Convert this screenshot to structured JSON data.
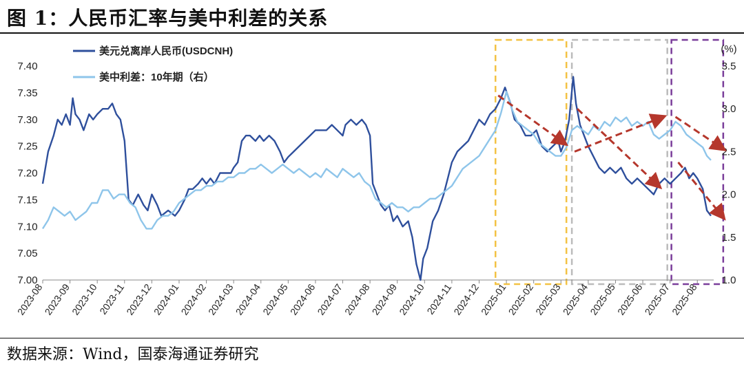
{
  "figure": {
    "title": "图 1：人民币汇率与美中利差的关系",
    "source": "数据来源：Wind，国泰海通证券研究"
  },
  "chart_data": {
    "type": "line",
    "left_axis": {
      "min": 7.0,
      "max": 7.4,
      "ticks": [
        "7.00",
        "7.05",
        "7.10",
        "7.15",
        "7.20",
        "7.25",
        "7.30",
        "7.35",
        "7.40"
      ]
    },
    "right_axis": {
      "unit": "(%)",
      "min": 1.0,
      "max": 3.5,
      "ticks": [
        "1.0",
        "1.5",
        "2.0",
        "2.5",
        "3.0",
        "3.5"
      ]
    },
    "x_ticks": [
      "2023-08",
      "2023-09",
      "2023-10",
      "2023-11",
      "2023-12",
      "2024-01",
      "2024-02",
      "2024-03",
      "2024-04",
      "2024-05",
      "2024-06",
      "2024-07",
      "2024-08",
      "2024-09",
      "2024-10",
      "2024-11",
      "2024-12",
      "2025-01",
      "2025-02",
      "2025-03",
      "2025-04",
      "2025-05",
      "2025-06",
      "2025-07",
      "2025-08"
    ],
    "series": [
      {
        "name": "美元兑离岸人民币(USDCNH)",
        "axis": "left",
        "color": "#2e4f9c",
        "points": [
          [
            0,
            7.18
          ],
          [
            0.2,
            7.24
          ],
          [
            0.4,
            7.27
          ],
          [
            0.55,
            7.3
          ],
          [
            0.7,
            7.29
          ],
          [
            0.85,
            7.31
          ],
          [
            1.0,
            7.29
          ],
          [
            1.1,
            7.34
          ],
          [
            1.2,
            7.31
          ],
          [
            1.35,
            7.3
          ],
          [
            1.5,
            7.28
          ],
          [
            1.7,
            7.31
          ],
          [
            1.85,
            7.3
          ],
          [
            2.0,
            7.31
          ],
          [
            2.2,
            7.32
          ],
          [
            2.4,
            7.32
          ],
          [
            2.55,
            7.33
          ],
          [
            2.7,
            7.31
          ],
          [
            2.85,
            7.3
          ],
          [
            3.0,
            7.26
          ],
          [
            3.15,
            7.15
          ],
          [
            3.3,
            7.14
          ],
          [
            3.5,
            7.16
          ],
          [
            3.7,
            7.14
          ],
          [
            3.85,
            7.13
          ],
          [
            4.0,
            7.16
          ],
          [
            4.2,
            7.14
          ],
          [
            4.35,
            7.12
          ],
          [
            4.6,
            7.13
          ],
          [
            4.85,
            7.12
          ],
          [
            5.0,
            7.13
          ],
          [
            5.2,
            7.15
          ],
          [
            5.35,
            7.17
          ],
          [
            5.5,
            7.17
          ],
          [
            5.7,
            7.18
          ],
          [
            5.85,
            7.19
          ],
          [
            6.0,
            7.18
          ],
          [
            6.15,
            7.19
          ],
          [
            6.3,
            7.18
          ],
          [
            6.5,
            7.2
          ],
          [
            6.7,
            7.2
          ],
          [
            6.9,
            7.2
          ],
          [
            7.0,
            7.21
          ],
          [
            7.15,
            7.22
          ],
          [
            7.3,
            7.26
          ],
          [
            7.45,
            7.27
          ],
          [
            7.6,
            7.27
          ],
          [
            7.8,
            7.26
          ],
          [
            7.95,
            7.27
          ],
          [
            8.1,
            7.26
          ],
          [
            8.3,
            7.27
          ],
          [
            8.5,
            7.26
          ],
          [
            8.7,
            7.24
          ],
          [
            8.85,
            7.22
          ],
          [
            9.0,
            7.23
          ],
          [
            9.2,
            7.24
          ],
          [
            9.4,
            7.25
          ],
          [
            9.6,
            7.26
          ],
          [
            9.8,
            7.27
          ],
          [
            10.0,
            7.28
          ],
          [
            10.2,
            7.28
          ],
          [
            10.4,
            7.28
          ],
          [
            10.6,
            7.29
          ],
          [
            10.8,
            7.28
          ],
          [
            11.0,
            7.27
          ],
          [
            11.1,
            7.29
          ],
          [
            11.3,
            7.3
          ],
          [
            11.5,
            7.29
          ],
          [
            11.7,
            7.3
          ],
          [
            11.85,
            7.29
          ],
          [
            12.0,
            7.27
          ],
          [
            12.1,
            7.18
          ],
          [
            12.25,
            7.16
          ],
          [
            12.4,
            7.14
          ],
          [
            12.55,
            7.13
          ],
          [
            12.7,
            7.14
          ],
          [
            12.85,
            7.11
          ],
          [
            13.0,
            7.12
          ],
          [
            13.2,
            7.1
          ],
          [
            13.4,
            7.11
          ],
          [
            13.55,
            7.08
          ],
          [
            13.7,
            7.03
          ],
          [
            13.85,
            7.0
          ],
          [
            13.95,
            7.04
          ],
          [
            14.1,
            7.06
          ],
          [
            14.3,
            7.11
          ],
          [
            14.5,
            7.13
          ],
          [
            14.7,
            7.16
          ],
          [
            14.85,
            7.19
          ],
          [
            15.0,
            7.22
          ],
          [
            15.2,
            7.24
          ],
          [
            15.4,
            7.25
          ],
          [
            15.6,
            7.26
          ],
          [
            15.8,
            7.28
          ],
          [
            16.0,
            7.3
          ],
          [
            16.2,
            7.29
          ],
          [
            16.4,
            7.31
          ],
          [
            16.6,
            7.32
          ],
          [
            16.8,
            7.34
          ],
          [
            16.95,
            7.36
          ],
          [
            17.15,
            7.33
          ],
          [
            17.3,
            7.3
          ],
          [
            17.5,
            7.29
          ],
          [
            17.7,
            7.27
          ],
          [
            17.9,
            7.27
          ],
          [
            18.1,
            7.28
          ],
          [
            18.3,
            7.25
          ],
          [
            18.5,
            7.24
          ],
          [
            18.7,
            7.25
          ],
          [
            18.9,
            7.26
          ],
          [
            19.0,
            7.24
          ],
          [
            19.15,
            7.26
          ],
          [
            19.3,
            7.3
          ],
          [
            19.45,
            7.38
          ],
          [
            19.55,
            7.33
          ],
          [
            19.7,
            7.29
          ],
          [
            19.85,
            7.27
          ],
          [
            20.0,
            7.25
          ],
          [
            20.2,
            7.23
          ],
          [
            20.4,
            7.21
          ],
          [
            20.6,
            7.2
          ],
          [
            20.8,
            7.21
          ],
          [
            21.0,
            7.2
          ],
          [
            21.2,
            7.21
          ],
          [
            21.4,
            7.19
          ],
          [
            21.6,
            7.18
          ],
          [
            21.8,
            7.19
          ],
          [
            22.0,
            7.18
          ],
          [
            22.2,
            7.17
          ],
          [
            22.4,
            7.16
          ],
          [
            22.6,
            7.18
          ],
          [
            22.8,
            7.19
          ],
          [
            23.0,
            7.18
          ],
          [
            23.2,
            7.19
          ],
          [
            23.4,
            7.2
          ],
          [
            23.55,
            7.21
          ],
          [
            23.7,
            7.19
          ],
          [
            23.85,
            7.2
          ],
          [
            24.0,
            7.19
          ],
          [
            24.2,
            7.17
          ],
          [
            24.35,
            7.13
          ],
          [
            24.5,
            7.12
          ]
        ]
      },
      {
        "name": "美中利差：10年期（右）",
        "axis": "right",
        "color": "#8ec5ea",
        "points": [
          [
            0,
            1.6
          ],
          [
            0.2,
            1.7
          ],
          [
            0.4,
            1.85
          ],
          [
            0.6,
            1.8
          ],
          [
            0.8,
            1.75
          ],
          [
            1.0,
            1.8
          ],
          [
            1.2,
            1.7
          ],
          [
            1.4,
            1.75
          ],
          [
            1.6,
            1.8
          ],
          [
            1.8,
            1.9
          ],
          [
            2.0,
            1.9
          ],
          [
            2.2,
            2.05
          ],
          [
            2.4,
            2.05
          ],
          [
            2.6,
            1.95
          ],
          [
            2.8,
            2.0
          ],
          [
            3.0,
            2.0
          ],
          [
            3.2,
            1.9
          ],
          [
            3.4,
            1.85
          ],
          [
            3.6,
            1.7
          ],
          [
            3.8,
            1.6
          ],
          [
            4.0,
            1.6
          ],
          [
            4.2,
            1.7
          ],
          [
            4.4,
            1.75
          ],
          [
            4.6,
            1.75
          ],
          [
            4.8,
            1.8
          ],
          [
            5.0,
            1.9
          ],
          [
            5.2,
            1.95
          ],
          [
            5.4,
            2.0
          ],
          [
            5.6,
            2.05
          ],
          [
            5.8,
            2.05
          ],
          [
            6.0,
            2.1
          ],
          [
            6.2,
            2.1
          ],
          [
            6.4,
            2.15
          ],
          [
            6.6,
            2.15
          ],
          [
            6.8,
            2.2
          ],
          [
            7.0,
            2.2
          ],
          [
            7.2,
            2.25
          ],
          [
            7.4,
            2.25
          ],
          [
            7.6,
            2.3
          ],
          [
            7.8,
            2.3
          ],
          [
            8.0,
            2.35
          ],
          [
            8.2,
            2.3
          ],
          [
            8.4,
            2.25
          ],
          [
            8.6,
            2.3
          ],
          [
            8.8,
            2.35
          ],
          [
            9.0,
            2.3
          ],
          [
            9.2,
            2.25
          ],
          [
            9.4,
            2.3
          ],
          [
            9.6,
            2.25
          ],
          [
            9.8,
            2.2
          ],
          [
            10.0,
            2.25
          ],
          [
            10.2,
            2.2
          ],
          [
            10.4,
            2.3
          ],
          [
            10.6,
            2.25
          ],
          [
            10.8,
            2.2
          ],
          [
            11.0,
            2.3
          ],
          [
            11.2,
            2.25
          ],
          [
            11.4,
            2.2
          ],
          [
            11.6,
            2.25
          ],
          [
            11.8,
            2.15
          ],
          [
            12.0,
            2.1
          ],
          [
            12.2,
            1.95
          ],
          [
            12.4,
            1.9
          ],
          [
            12.6,
            1.85
          ],
          [
            12.8,
            1.9
          ],
          [
            13.0,
            1.85
          ],
          [
            13.2,
            1.85
          ],
          [
            13.4,
            1.8
          ],
          [
            13.6,
            1.85
          ],
          [
            13.8,
            1.85
          ],
          [
            14.0,
            1.9
          ],
          [
            14.2,
            1.95
          ],
          [
            14.4,
            1.95
          ],
          [
            14.6,
            2.0
          ],
          [
            14.8,
            2.05
          ],
          [
            15.0,
            2.1
          ],
          [
            15.2,
            2.2
          ],
          [
            15.4,
            2.3
          ],
          [
            15.6,
            2.35
          ],
          [
            15.8,
            2.4
          ],
          [
            16.0,
            2.45
          ],
          [
            16.2,
            2.55
          ],
          [
            16.4,
            2.65
          ],
          [
            16.6,
            2.75
          ],
          [
            16.8,
            2.95
          ],
          [
            17.0,
            3.2
          ],
          [
            17.2,
            3.0
          ],
          [
            17.4,
            2.85
          ],
          [
            17.6,
            2.8
          ],
          [
            17.8,
            2.75
          ],
          [
            18.0,
            2.7
          ],
          [
            18.2,
            2.6
          ],
          [
            18.4,
            2.55
          ],
          [
            18.6,
            2.5
          ],
          [
            18.8,
            2.45
          ],
          [
            19.0,
            2.45
          ],
          [
            19.2,
            2.55
          ],
          [
            19.4,
            2.75
          ],
          [
            19.6,
            2.8
          ],
          [
            19.8,
            2.75
          ],
          [
            20.0,
            2.7
          ],
          [
            20.2,
            2.8
          ],
          [
            20.4,
            2.75
          ],
          [
            20.6,
            2.85
          ],
          [
            20.8,
            2.8
          ],
          [
            21.0,
            2.9
          ],
          [
            21.2,
            2.85
          ],
          [
            21.4,
            2.9
          ],
          [
            21.6,
            2.8
          ],
          [
            21.8,
            2.85
          ],
          [
            22.0,
            2.8
          ],
          [
            22.2,
            2.85
          ],
          [
            22.4,
            2.7
          ],
          [
            22.6,
            2.65
          ],
          [
            22.8,
            2.7
          ],
          [
            23.0,
            2.75
          ],
          [
            23.2,
            2.85
          ],
          [
            23.4,
            2.8
          ],
          [
            23.6,
            2.7
          ],
          [
            23.8,
            2.65
          ],
          [
            24.0,
            2.6
          ],
          [
            24.2,
            2.55
          ],
          [
            24.35,
            2.45
          ],
          [
            24.5,
            2.4
          ]
        ]
      }
    ],
    "annotations": {
      "boxes": [
        {
          "color": "#f3c243",
          "x0": 16.6,
          "x1": 19.2
        },
        {
          "color": "#bbbbbb",
          "x0": 19.4,
          "x1": 22.9
        },
        {
          "color": "#7a3d9a",
          "x0": 23.05,
          "x1": 24.95
        }
      ],
      "arrows": [
        {
          "color": "#b5372c",
          "from": [
            16.7,
            7.345
          ],
          "to": [
            19.15,
            7.255
          ]
        },
        {
          "color": "#b5372c",
          "from": [
            19.5,
            7.24
          ],
          "to": [
            22.75,
            7.305
          ]
        },
        {
          "color": "#b5372c",
          "from": [
            19.6,
            7.32
          ],
          "to": [
            22.6,
            7.175
          ]
        },
        {
          "color": "#b5372c",
          "from": [
            23.2,
            7.305
          ],
          "to": [
            24.95,
            7.245
          ]
        },
        {
          "color": "#b5372c",
          "from": [
            23.3,
            7.22
          ],
          "to": [
            24.95,
            7.117
          ]
        }
      ]
    }
  }
}
